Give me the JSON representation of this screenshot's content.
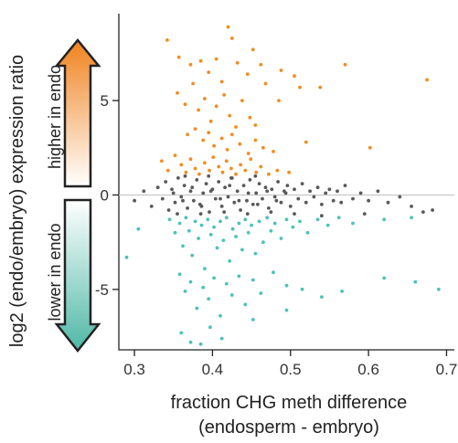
{
  "chart_data": {
    "type": "scatter",
    "xlabel_line1": "fraction CHG meth difference",
    "xlabel_line2": "(endosperm - embryo)",
    "ylabel": "log2 (endo/embryo) expression ratio",
    "xlim": [
      0.28,
      0.71
    ],
    "ylim": [
      -8.2,
      9.6
    ],
    "xticks": [
      0.3,
      0.4,
      0.5,
      0.6,
      0.7
    ],
    "xtick_labels": [
      "0.3",
      "0.4",
      "0.5",
      "0.6",
      "0.7"
    ],
    "yticks": [
      5,
      0,
      -5
    ],
    "ytick_labels": [
      "5",
      "0",
      "-5"
    ],
    "reference_line_y": 0,
    "reference_line_color": "#c8c8c8",
    "arrow_up_label": "higher in endo",
    "arrow_down_label": "lower in endo",
    "arrow_up_color": "#f0821e",
    "arrow_down_color": "#4fb8a6",
    "series": [
      {
        "color": "#f28c1f",
        "points": [
          [
            0.342,
            8.2
          ],
          [
            0.357,
            7.3
          ],
          [
            0.372,
            6.9
          ],
          [
            0.385,
            7.1
          ],
          [
            0.395,
            6.5
          ],
          [
            0.405,
            7.2
          ],
          [
            0.412,
            6.0
          ],
          [
            0.42,
            8.9
          ],
          [
            0.425,
            8.3
          ],
          [
            0.432,
            7.0
          ],
          [
            0.445,
            6.4
          ],
          [
            0.452,
            7.7
          ],
          [
            0.462,
            6.9
          ],
          [
            0.488,
            6.6
          ],
          [
            0.505,
            6.3
          ],
          [
            0.512,
            5.7
          ],
          [
            0.57,
            6.9
          ],
          [
            0.675,
            6.1
          ],
          [
            0.355,
            5.4
          ],
          [
            0.365,
            4.8
          ],
          [
            0.375,
            5.9
          ],
          [
            0.382,
            4.5
          ],
          [
            0.39,
            5.1
          ],
          [
            0.398,
            3.9
          ],
          [
            0.405,
            4.7
          ],
          [
            0.415,
            5.3
          ],
          [
            0.422,
            4.2
          ],
          [
            0.43,
            3.6
          ],
          [
            0.438,
            5.0
          ],
          [
            0.448,
            4.1
          ],
          [
            0.455,
            3.7
          ],
          [
            0.468,
            5.9
          ],
          [
            0.485,
            5.0
          ],
          [
            0.538,
            5.7
          ],
          [
            0.368,
            3.2
          ],
          [
            0.378,
            3.5
          ],
          [
            0.388,
            2.9
          ],
          [
            0.395,
            3.3
          ],
          [
            0.402,
            2.6
          ],
          [
            0.412,
            3.0
          ],
          [
            0.419,
            2.4
          ],
          [
            0.425,
            3.2
          ],
          [
            0.435,
            2.7
          ],
          [
            0.446,
            2.2
          ],
          [
            0.455,
            2.9
          ],
          [
            0.465,
            2.5
          ],
          [
            0.478,
            2.3
          ],
          [
            0.52,
            2.8
          ],
          [
            0.335,
            1.8
          ],
          [
            0.343,
            1.3
          ],
          [
            0.352,
            2.1
          ],
          [
            0.36,
            1.6
          ],
          [
            0.366,
            1.2
          ],
          [
            0.372,
            1.9
          ],
          [
            0.378,
            1.4
          ],
          [
            0.383,
            1.1
          ],
          [
            0.39,
            1.7
          ],
          [
            0.396,
            1.3
          ],
          [
            0.401,
            2.0
          ],
          [
            0.408,
            1.5
          ],
          [
            0.413,
            1.2
          ],
          [
            0.418,
            1.8
          ],
          [
            0.424,
            1.4
          ],
          [
            0.43,
            1.1
          ],
          [
            0.436,
            1.6
          ],
          [
            0.442,
            1.3
          ],
          [
            0.449,
            1.9
          ],
          [
            0.456,
            1.2
          ],
          [
            0.462,
            1.5
          ],
          [
            0.472,
            1.1
          ],
          [
            0.483,
            1.3
          ],
          [
            0.498,
            1.2
          ],
          [
            0.602,
            2.5
          ]
        ]
      },
      {
        "color": "#595959",
        "points": [
          [
            0.3,
            -0.3
          ],
          [
            0.312,
            0.2
          ],
          [
            0.322,
            -0.6
          ],
          [
            0.33,
            0.4
          ],
          [
            0.336,
            -0.2
          ],
          [
            0.34,
            0.7
          ],
          [
            0.344,
            -0.8
          ],
          [
            0.348,
            0.3
          ],
          [
            0.352,
            -0.4
          ],
          [
            0.356,
            0.9
          ],
          [
            0.36,
            -0.1
          ],
          [
            0.364,
            0.5
          ],
          [
            0.368,
            -0.7
          ],
          [
            0.372,
            0.2
          ],
          [
            0.376,
            -0.3
          ],
          [
            0.38,
            0.8
          ],
          [
            0.384,
            -0.5
          ],
          [
            0.388,
            0.1
          ],
          [
            0.392,
            0.6
          ],
          [
            0.396,
            -0.9
          ],
          [
            0.4,
            0.3
          ],
          [
            0.404,
            -0.2
          ],
          [
            0.408,
            0.7
          ],
          [
            0.412,
            -0.6
          ],
          [
            0.416,
            0.4
          ],
          [
            0.42,
            -0.1
          ],
          [
            0.424,
            0.9
          ],
          [
            0.428,
            -0.4
          ],
          [
            0.432,
            0.2
          ],
          [
            0.436,
            -0.8
          ],
          [
            0.44,
            0.5
          ],
          [
            0.444,
            -0.3
          ],
          [
            0.448,
            0.8
          ],
          [
            0.452,
            -0.5
          ],
          [
            0.456,
            0.1
          ],
          [
            0.46,
            0.6
          ],
          [
            0.464,
            -0.2
          ],
          [
            0.468,
            0.4
          ],
          [
            0.472,
            -0.7
          ],
          [
            0.476,
            0.3
          ],
          [
            0.48,
            -0.1
          ],
          [
            0.484,
            0.7
          ],
          [
            0.488,
            -0.4
          ],
          [
            0.492,
            0.2
          ],
          [
            0.496,
            0.5
          ],
          [
            0.5,
            -0.6
          ],
          [
            0.505,
            0.3
          ],
          [
            0.51,
            -0.2
          ],
          [
            0.515,
            0.6
          ],
          [
            0.52,
            -0.4
          ],
          [
            0.525,
            0.2
          ],
          [
            0.53,
            -0.1
          ],
          [
            0.535,
            0.4
          ],
          [
            0.54,
            -0.5
          ],
          [
            0.545,
            0.1
          ],
          [
            0.55,
            0.3
          ],
          [
            0.555,
            -0.3
          ],
          [
            0.56,
            0.2
          ],
          [
            0.565,
            -0.4
          ],
          [
            0.57,
            0.5
          ],
          [
            0.58,
            -0.2
          ],
          [
            0.59,
            0.1
          ],
          [
            0.6,
            -0.3
          ],
          [
            0.612,
            0.2
          ],
          [
            0.625,
            -0.4
          ],
          [
            0.64,
            -0.1
          ],
          [
            0.655,
            -0.6
          ],
          [
            0.67,
            -0.9
          ],
          [
            0.682,
            -0.8
          ],
          [
            0.35,
            0.1
          ],
          [
            0.362,
            -0.3
          ],
          [
            0.374,
            0.4
          ],
          [
            0.386,
            -0.6
          ],
          [
            0.398,
            0.2
          ],
          [
            0.41,
            -0.2
          ],
          [
            0.422,
            0.5
          ],
          [
            0.434,
            -0.3
          ],
          [
            0.446,
            0.1
          ],
          [
            0.458,
            -0.5
          ],
          [
            0.47,
            0.2
          ],
          [
            0.482,
            -0.3
          ],
          [
            0.494,
            0.1
          ],
          [
            0.365,
            1.0
          ],
          [
            0.395,
            1.0
          ],
          [
            0.425,
            0.9
          ],
          [
            0.455,
            1.0
          ],
          [
            0.355,
            -1.0
          ],
          [
            0.385,
            -1.0
          ],
          [
            0.415,
            -0.9
          ],
          [
            0.445,
            -1.0
          ],
          [
            0.475,
            -0.9
          ],
          [
            0.505,
            -1.0
          ],
          [
            0.54,
            -1.1
          ],
          [
            0.595,
            -1.0
          ]
        ]
      },
      {
        "color": "#4cc2b8",
        "points": [
          [
            0.29,
            -3.3
          ],
          [
            0.305,
            -1.8
          ],
          [
            0.345,
            -1.3
          ],
          [
            0.352,
            -2.0
          ],
          [
            0.358,
            -1.5
          ],
          [
            0.362,
            -2.7
          ],
          [
            0.366,
            -1.2
          ],
          [
            0.37,
            -1.9
          ],
          [
            0.374,
            -3.2
          ],
          [
            0.378,
            -1.4
          ],
          [
            0.382,
            -2.3
          ],
          [
            0.386,
            -1.6
          ],
          [
            0.39,
            -3.9
          ],
          [
            0.394,
            -1.3
          ],
          [
            0.398,
            -2.1
          ],
          [
            0.402,
            -1.7
          ],
          [
            0.406,
            -2.8
          ],
          [
            0.41,
            -1.4
          ],
          [
            0.414,
            -2.4
          ],
          [
            0.418,
            -1.2
          ],
          [
            0.422,
            -3.5
          ],
          [
            0.426,
            -1.8
          ],
          [
            0.43,
            -2.2
          ],
          [
            0.434,
            -1.5
          ],
          [
            0.438,
            -2.9
          ],
          [
            0.442,
            -1.3
          ],
          [
            0.446,
            -2.0
          ],
          [
            0.45,
            -1.6
          ],
          [
            0.455,
            -3.1
          ],
          [
            0.46,
            -1.4
          ],
          [
            0.465,
            -2.5
          ],
          [
            0.47,
            -1.2
          ],
          [
            0.475,
            -1.9
          ],
          [
            0.48,
            -1.5
          ],
          [
            0.488,
            -2.3
          ],
          [
            0.495,
            -1.3
          ],
          [
            0.503,
            -1.7
          ],
          [
            0.512,
            -1.4
          ],
          [
            0.522,
            -2.0
          ],
          [
            0.535,
            -1.3
          ],
          [
            0.548,
            -1.6
          ],
          [
            0.562,
            -1.2
          ],
          [
            0.58,
            -1.5
          ],
          [
            0.62,
            -1.3
          ],
          [
            0.655,
            -1.2
          ],
          [
            0.358,
            -4.2
          ],
          [
            0.365,
            -5.1
          ],
          [
            0.372,
            -4.6
          ],
          [
            0.38,
            -6.0
          ],
          [
            0.388,
            -4.9
          ],
          [
            0.395,
            -5.5
          ],
          [
            0.402,
            -4.4
          ],
          [
            0.41,
            -6.4
          ],
          [
            0.418,
            -4.7
          ],
          [
            0.425,
            -5.3
          ],
          [
            0.434,
            -4.3
          ],
          [
            0.442,
            -5.8
          ],
          [
            0.452,
            -4.5
          ],
          [
            0.462,
            -5.2
          ],
          [
            0.478,
            -4.1
          ],
          [
            0.495,
            -4.8
          ],
          [
            0.515,
            -5.0
          ],
          [
            0.54,
            -5.4
          ],
          [
            0.566,
            -5.1
          ],
          [
            0.66,
            -4.6
          ],
          [
            0.36,
            -7.3
          ],
          [
            0.372,
            -7.8
          ],
          [
            0.385,
            -7.9
          ],
          [
            0.397,
            -7.0
          ],
          [
            0.412,
            -7.6
          ],
          [
            0.452,
            -6.6
          ],
          [
            0.495,
            -6.1
          ],
          [
            0.62,
            -4.4
          ],
          [
            0.69,
            -5.0
          ]
        ]
      }
    ]
  }
}
